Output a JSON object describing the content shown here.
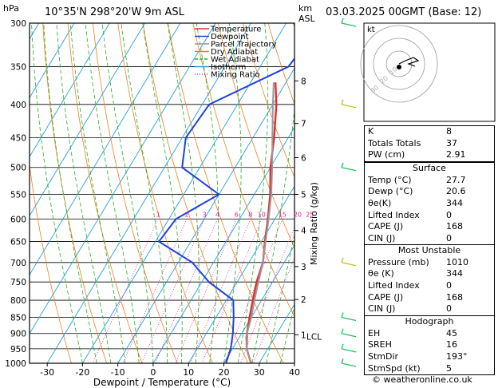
{
  "header": {
    "pressure_unit": "hPa",
    "location": "10°35'N  298°20'W  9m  ASL",
    "height_unit_km": "km",
    "height_unit_asl": "ASL",
    "datetime": "03.03.2025  00GMT  (Base: 12)"
  },
  "legend": [
    {
      "label": "Temperature",
      "color": "#e03030"
    },
    {
      "label": "Dewpoint",
      "color": "#2040e0"
    },
    {
      "label": "Parcel Trajectory",
      "color": "#999999"
    },
    {
      "label": "Dry Adiabat",
      "color": "#f08020"
    },
    {
      "label": "Wet Adiabat",
      "color": "#20b020"
    },
    {
      "label": "Isotherm",
      "color": "#20a0e0"
    },
    {
      "label": "Mixing Ratio",
      "color": "#e020a0"
    }
  ],
  "chart_data": {
    "type": "line",
    "title": "",
    "xlabel": "Dewpoint / Temperature (°C)",
    "ylabel": "hPa",
    "right_ylabel": "Mixing Ratio (g/kg)",
    "x_ticks": [
      "-30",
      "-20",
      "-10",
      "0",
      "10",
      "20",
      "30",
      "40"
    ],
    "x_tick_values": [
      -30,
      -20,
      -10,
      0,
      10,
      20,
      30,
      40
    ],
    "xlim": [
      -35,
      40
    ],
    "pressure_levels": [
      "300",
      "350",
      "400",
      "450",
      "500",
      "550",
      "600",
      "650",
      "700",
      "750",
      "800",
      "850",
      "900",
      "950",
      "1000"
    ],
    "pressure_values": [
      300,
      350,
      400,
      450,
      500,
      550,
      600,
      650,
      700,
      750,
      800,
      850,
      900,
      950,
      1000
    ],
    "km_ticks": [
      {
        "label": "8",
        "p": 368
      },
      {
        "label": "7",
        "p": 428
      },
      {
        "label": "6",
        "p": 483
      },
      {
        "label": "5",
        "p": 550
      },
      {
        "label": "4",
        "p": 625
      },
      {
        "label": "3",
        "p": 710
      },
      {
        "label": "2",
        "p": 798
      },
      {
        "label": "1",
        "p": 904
      }
    ],
    "lcl_label": "LCL",
    "lcl_p": 910,
    "mixing_ratio_labels": [
      "1",
      "2",
      "3",
      "4",
      "6",
      "8",
      "10",
      "15",
      "20",
      "25"
    ],
    "mixing_ratio_values": [
      1,
      2,
      3,
      4,
      6,
      8,
      10,
      15,
      20,
      25
    ],
    "series": [
      {
        "name": "Temperature",
        "color": "#e03030",
        "points": [
          [
            1000,
            27.7
          ],
          [
            950,
            24
          ],
          [
            900,
            21.5
          ],
          [
            850,
            19.5
          ],
          [
            800,
            17.5
          ],
          [
            750,
            15.5
          ],
          [
            700,
            14
          ],
          [
            650,
            11
          ],
          [
            600,
            8
          ],
          [
            550,
            4.5
          ],
          [
            500,
            0
          ],
          [
            450,
            -4
          ],
          [
            400,
            -9
          ],
          [
            370,
            -13
          ]
        ]
      },
      {
        "name": "Dewpoint",
        "color": "#2040e0",
        "points": [
          [
            1000,
            20.6
          ],
          [
            950,
            19.5
          ],
          [
            900,
            17.5
          ],
          [
            850,
            15
          ],
          [
            800,
            12
          ],
          [
            750,
            2
          ],
          [
            700,
            -6
          ],
          [
            650,
            -19
          ],
          [
            600,
            -18
          ],
          [
            550,
            -10
          ],
          [
            500,
            -25
          ],
          [
            450,
            -29
          ],
          [
            400,
            -28
          ],
          [
            350,
            -12
          ],
          [
            300,
            -10
          ]
        ]
      },
      {
        "name": "Parcel Trajectory",
        "color": "#999999",
        "points": [
          [
            1000,
            27.7
          ],
          [
            950,
            24
          ],
          [
            910,
            21.8
          ],
          [
            850,
            20
          ],
          [
            800,
            18
          ],
          [
            750,
            16
          ],
          [
            700,
            14
          ],
          [
            650,
            11.2
          ],
          [
            600,
            8.2
          ],
          [
            550,
            4.8
          ],
          [
            500,
            0.5
          ],
          [
            450,
            -4.5
          ],
          [
            400,
            -10
          ],
          [
            370,
            -13.5
          ]
        ]
      }
    ]
  },
  "hodograph": {
    "unit": "kt",
    "ring_labels": [
      "10",
      "20",
      "30"
    ]
  },
  "indices": [
    {
      "label": "K",
      "value": "8"
    },
    {
      "label": "Totals Totals",
      "value": "37"
    },
    {
      "label": "PW (cm)",
      "value": "2.91"
    }
  ],
  "surface": {
    "title": "Surface",
    "rows": [
      {
        "label": "Temp (°C)",
        "value": "27.7"
      },
      {
        "label": "Dewp (°C)",
        "value": "20.6"
      },
      {
        "label": "θe(K)",
        "value": "344"
      },
      {
        "label": "Lifted Index",
        "value": "0"
      },
      {
        "label": "CAPE (J)",
        "value": "168"
      },
      {
        "label": "CIN (J)",
        "value": "0"
      }
    ]
  },
  "most_unstable": {
    "title": "Most Unstable",
    "rows": [
      {
        "label": "Pressure (mb)",
        "value": "1010"
      },
      {
        "label": "θe (K)",
        "value": "344"
      },
      {
        "label": "Lifted Index",
        "value": "0"
      },
      {
        "label": "CAPE (J)",
        "value": "168"
      },
      {
        "label": "CIN (J)",
        "value": "0"
      }
    ]
  },
  "hodo_params": {
    "title": "Hodograph",
    "rows": [
      {
        "label": "EH",
        "value": "45"
      },
      {
        "label": "SREH",
        "value": "16"
      },
      {
        "label": "StmDir",
        "value": "193°"
      },
      {
        "label": "StmSpd (kt)",
        "value": "5"
      }
    ]
  },
  "footer": "© weatheronline.co.uk"
}
